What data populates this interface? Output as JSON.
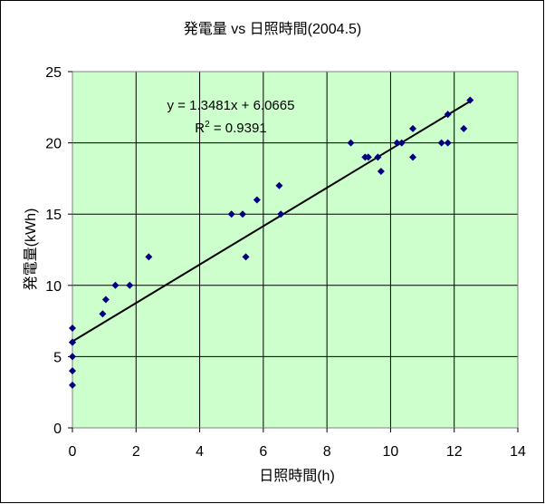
{
  "chart_data": {
    "type": "scatter",
    "title": "発電量 vs 日照時間(2004.5)",
    "xlabel": "日照時間(h)",
    "ylabel": "発電量(kWh)",
    "xlim": [
      0,
      14
    ],
    "ylim": [
      0,
      25
    ],
    "xticks": [
      0,
      2,
      4,
      6,
      8,
      10,
      12,
      14
    ],
    "yticks": [
      0,
      5,
      10,
      15,
      20,
      25
    ],
    "grid": true,
    "legend": "none",
    "colors": {
      "plot_background": "#ccffcc",
      "marker": "#000080",
      "trendline": "#000000",
      "gridline": "#000000"
    },
    "series": [
      {
        "points": [
          [
            0,
            3
          ],
          [
            0,
            4
          ],
          [
            0,
            5
          ],
          [
            0,
            6
          ],
          [
            0,
            6
          ],
          [
            0,
            7
          ],
          [
            0.95,
            8
          ],
          [
            1.05,
            9
          ],
          [
            1.35,
            10
          ],
          [
            1.8,
            10
          ],
          [
            2.4,
            12
          ],
          [
            5.0,
            15
          ],
          [
            5.35,
            15
          ],
          [
            5.45,
            12
          ],
          [
            5.8,
            16
          ],
          [
            6.5,
            17
          ],
          [
            6.55,
            15
          ],
          [
            8.75,
            20
          ],
          [
            9.2,
            19
          ],
          [
            9.3,
            19
          ],
          [
            9.6,
            19
          ],
          [
            9.7,
            18
          ],
          [
            10.2,
            20
          ],
          [
            10.35,
            20
          ],
          [
            10.7,
            21
          ],
          [
            10.7,
            19
          ],
          [
            11.6,
            20
          ],
          [
            11.8,
            22
          ],
          [
            11.8,
            20
          ],
          [
            12.3,
            21
          ],
          [
            12.5,
            23
          ]
        ]
      }
    ],
    "trendline": {
      "type": "linear",
      "slope": 1.3481,
      "intercept": 6.0665,
      "x_range": [
        0,
        12.5
      ],
      "equation_label": "y = 1.3481x + 6.0665",
      "r2_prefix": "R",
      "r2_exponent": "2",
      "r2_value": " = 0.9391"
    }
  }
}
